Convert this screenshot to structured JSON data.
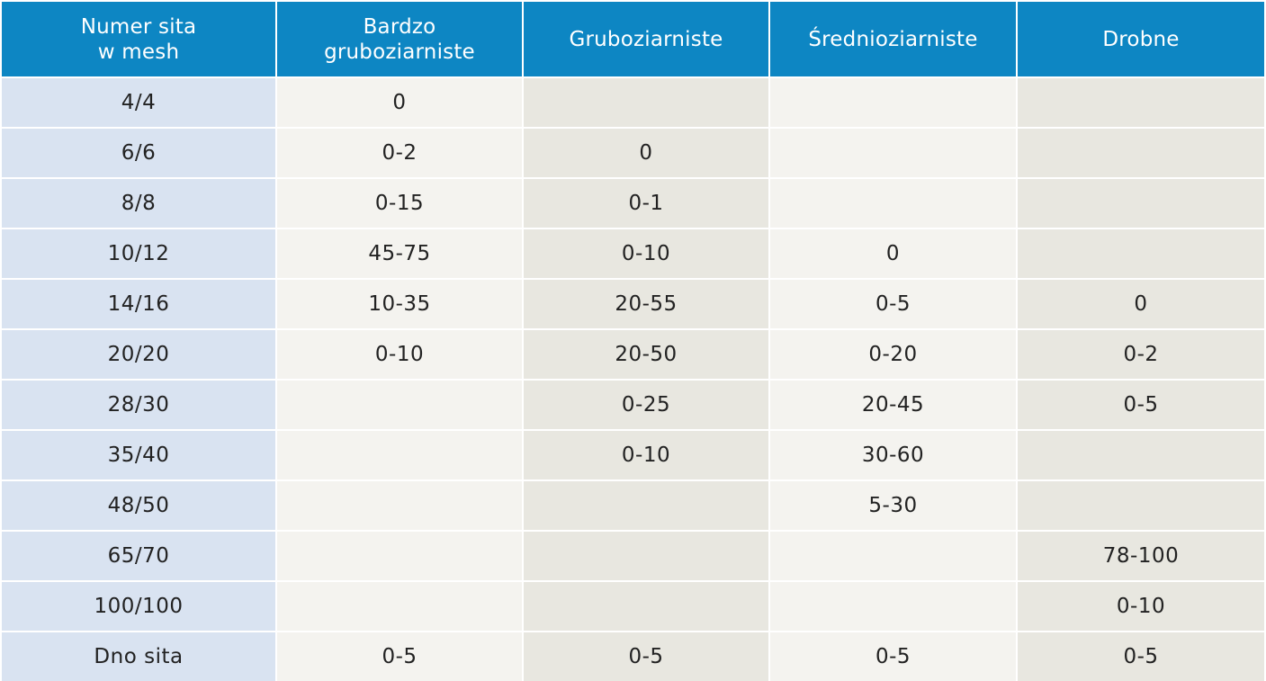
{
  "table": {
    "headers": [
      "Numer sita\nw mesh",
      "Bardzo\ngruboziarniste",
      "Gruboziarniste",
      "Średnioziarniste",
      "Drobne"
    ],
    "rows": [
      [
        "4/4",
        "0",
        "",
        "",
        ""
      ],
      [
        "6/6",
        "0-2",
        "0",
        "",
        ""
      ],
      [
        "8/8",
        "0-15",
        "0-1",
        "",
        ""
      ],
      [
        "10/12",
        "45-75",
        "0-10",
        "0",
        ""
      ],
      [
        "14/16",
        "10-35",
        "20-55",
        "0-5",
        "0"
      ],
      [
        "20/20",
        "0-10",
        "20-50",
        "0-20",
        "0-2"
      ],
      [
        "28/30",
        "",
        "0-25",
        "20-45",
        "0-5"
      ],
      [
        "35/40",
        "",
        "0-10",
        "30-60",
        ""
      ],
      [
        "48/50",
        "",
        "",
        "5-30",
        ""
      ],
      [
        "65/70",
        "",
        "",
        "",
        "78-100"
      ],
      [
        "100/100",
        "",
        "",
        "",
        "0-10"
      ],
      [
        "Dno sita",
        "0-5",
        "0-5",
        "0-5",
        "0-5"
      ]
    ]
  },
  "colors": {
    "header_background": "#0d86c3",
    "header_text": "#ffffff",
    "mesh_column_background": "#d9e3f1",
    "column_light_background": "#f4f3ef",
    "column_dark_background": "#e8e7e0",
    "cell_text": "#222222"
  }
}
